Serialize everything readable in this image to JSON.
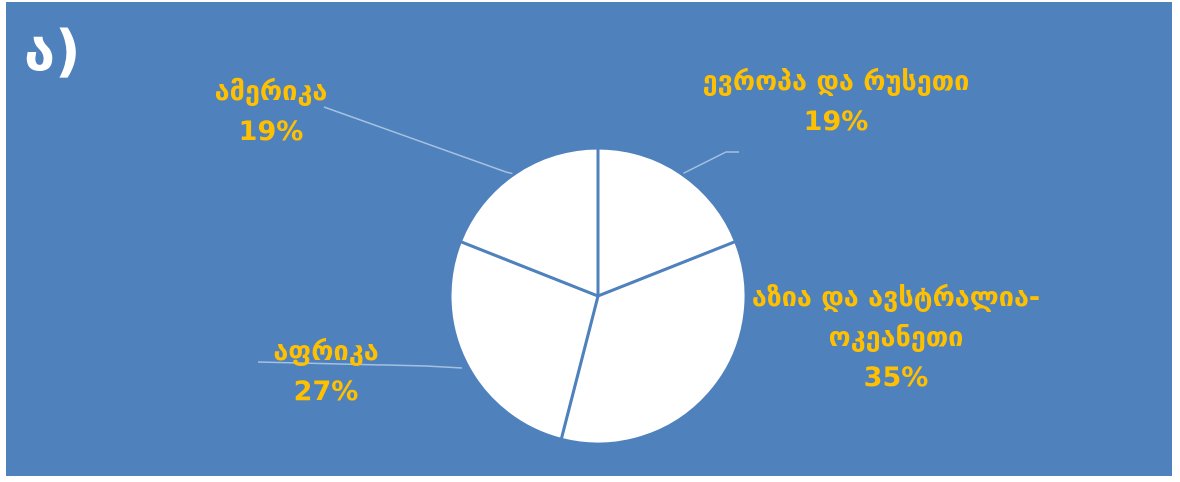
{
  "slide": {
    "label": "ა)",
    "background_color": "#4f81bd",
    "label_color": "#ffffff",
    "data_label_color": "#ffc000"
  },
  "chart_data": {
    "type": "pie",
    "title": "",
    "slice_color": "#ffffff",
    "slice_border_color": "#4f81bd",
    "leader_line_color": "#a6c1e0",
    "slices": [
      {
        "label": "ევროპა და რუსეთი",
        "value": 19,
        "value_label": "19%"
      },
      {
        "label": "აზია და ავსტრალია-ოკეანეთი",
        "label_lines": [
          "აზია და ავსტრალია-",
          "ოკეანეთი"
        ],
        "value": 35,
        "value_label": "35%"
      },
      {
        "label": "აფრიკა",
        "value": 27,
        "value_label": "27%"
      },
      {
        "label": "ამერიკა",
        "value": 19,
        "value_label": "19%"
      }
    ]
  }
}
